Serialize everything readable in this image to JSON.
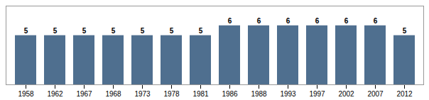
{
  "chart_data": {
    "type": "bar",
    "categories": [
      "1958",
      "1962",
      "1967",
      "1968",
      "1973",
      "1978",
      "1981",
      "1986",
      "1988",
      "1993",
      "1997",
      "2002",
      "2007",
      "2012"
    ],
    "values": [
      5,
      5,
      5,
      5,
      5,
      5,
      5,
      6,
      6,
      6,
      6,
      6,
      6,
      5
    ],
    "color": "#4f6f8f",
    "ylim": [
      0,
      8.0
    ],
    "data_labels": true,
    "tick_labels": "x",
    "grid": false
  }
}
